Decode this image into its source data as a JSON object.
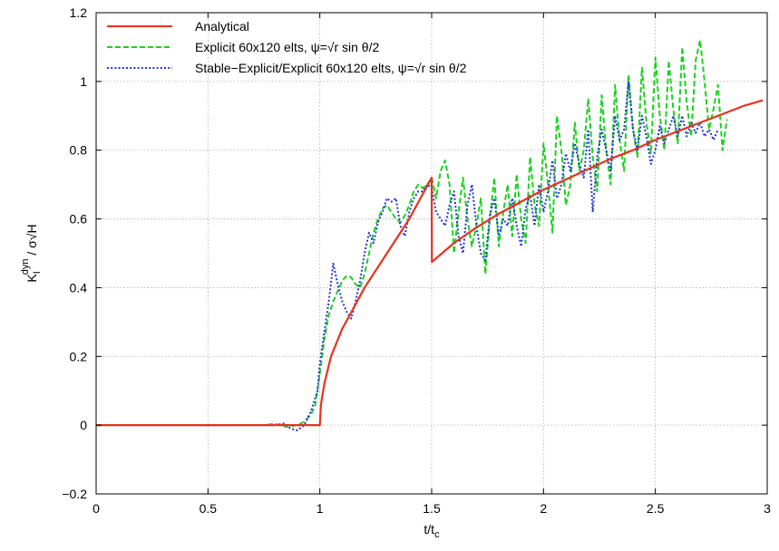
{
  "chart_data": {
    "type": "line",
    "title": "",
    "xlabel": "t/t",
    "xlabel_sub": "c",
    "ylabel_main": "K",
    "ylabel_sub": "I",
    "ylabel_sup": "dyn",
    "ylabel_tail": " / σ√H",
    "xlim": [
      0,
      3
    ],
    "ylim": [
      -0.2,
      1.2
    ],
    "xticks": [
      0,
      0.5,
      1,
      1.5,
      2,
      2.5,
      3
    ],
    "xtick_labels": [
      "0",
      "0.5",
      "1",
      "1.5",
      "2",
      "2.5",
      "3"
    ],
    "yticks": [
      -0.2,
      0,
      0.2,
      0.4,
      0.6,
      0.8,
      1,
      1.2
    ],
    "ytick_labels": [
      "−0.2",
      "0",
      "0.2",
      "0.4",
      "0.6",
      "0.8",
      "1",
      "1.2"
    ],
    "grid": true,
    "legend_position": "top-left",
    "series": [
      {
        "name": "Analytical",
        "color": "#e8321e",
        "style": "solid",
        "points": [
          [
            0,
            0
          ],
          [
            0.999,
            0
          ],
          [
            1.0,
            0
          ],
          [
            1.005,
            0.06
          ],
          [
            1.02,
            0.12
          ],
          [
            1.05,
            0.2
          ],
          [
            1.1,
            0.28
          ],
          [
            1.2,
            0.4
          ],
          [
            1.3,
            0.5
          ],
          [
            1.4,
            0.6
          ],
          [
            1.5,
            0.72
          ],
          [
            1.501,
            0.475
          ],
          [
            1.6,
            0.53
          ],
          [
            1.7,
            0.575
          ],
          [
            1.8,
            0.615
          ],
          [
            1.9,
            0.65
          ],
          [
            2.0,
            0.685
          ],
          [
            2.1,
            0.715
          ],
          [
            2.2,
            0.745
          ],
          [
            2.3,
            0.775
          ],
          [
            2.4,
            0.8
          ],
          [
            2.5,
            0.83
          ],
          [
            2.6,
            0.855
          ],
          [
            2.7,
            0.88
          ],
          [
            2.8,
            0.905
          ],
          [
            2.9,
            0.93
          ],
          [
            2.98,
            0.945
          ]
        ]
      },
      {
        "name": "Explicit 60x120 elts, ψ=√r sin θ/2",
        "color": "#19d21e",
        "style": "dashed",
        "points": [
          [
            0,
            0
          ],
          [
            0.75,
            0
          ],
          [
            0.8,
            0.004
          ],
          [
            0.85,
            -0.005
          ],
          [
            0.9,
            0.0
          ],
          [
            0.93,
            0.01
          ],
          [
            0.96,
            0.03
          ],
          [
            0.98,
            0.06
          ],
          [
            1.0,
            0.15
          ],
          [
            1.02,
            0.25
          ],
          [
            1.04,
            0.32
          ],
          [
            1.06,
            0.36
          ],
          [
            1.08,
            0.39
          ],
          [
            1.1,
            0.42
          ],
          [
            1.12,
            0.435
          ],
          [
            1.14,
            0.43
          ],
          [
            1.16,
            0.41
          ],
          [
            1.18,
            0.4
          ],
          [
            1.2,
            0.44
          ],
          [
            1.22,
            0.5
          ],
          [
            1.24,
            0.56
          ],
          [
            1.26,
            0.6
          ],
          [
            1.28,
            0.63
          ],
          [
            1.3,
            0.64
          ],
          [
            1.32,
            0.62
          ],
          [
            1.34,
            0.6
          ],
          [
            1.36,
            0.59
          ],
          [
            1.38,
            0.61
          ],
          [
            1.4,
            0.64
          ],
          [
            1.42,
            0.68
          ],
          [
            1.44,
            0.7
          ],
          [
            1.46,
            0.69
          ],
          [
            1.48,
            0.7
          ],
          [
            1.5,
            0.72
          ],
          [
            1.52,
            0.66
          ],
          [
            1.54,
            0.74
          ],
          [
            1.56,
            0.77
          ],
          [
            1.58,
            0.7
          ],
          [
            1.6,
            0.5
          ],
          [
            1.62,
            0.62
          ],
          [
            1.64,
            0.72
          ],
          [
            1.66,
            0.6
          ],
          [
            1.68,
            0.52
          ],
          [
            1.7,
            0.58
          ],
          [
            1.72,
            0.66
          ],
          [
            1.74,
            0.44
          ],
          [
            1.76,
            0.6
          ],
          [
            1.78,
            0.72
          ],
          [
            1.8,
            0.52
          ],
          [
            1.82,
            0.62
          ],
          [
            1.84,
            0.7
          ],
          [
            1.86,
            0.55
          ],
          [
            1.88,
            0.73
          ],
          [
            1.9,
            0.6
          ],
          [
            1.92,
            0.53
          ],
          [
            1.94,
            0.78
          ],
          [
            1.96,
            0.64
          ],
          [
            1.98,
            0.58
          ],
          [
            2.0,
            0.82
          ],
          [
            2.02,
            0.7
          ],
          [
            2.04,
            0.56
          ],
          [
            2.06,
            0.9
          ],
          [
            2.08,
            0.8
          ],
          [
            2.1,
            0.64
          ],
          [
            2.12,
            0.7
          ],
          [
            2.14,
            0.88
          ],
          [
            2.16,
            0.74
          ],
          [
            2.18,
            0.8
          ],
          [
            2.2,
            0.95
          ],
          [
            2.22,
            0.78
          ],
          [
            2.24,
            0.68
          ],
          [
            2.26,
            0.96
          ],
          [
            2.28,
            0.8
          ],
          [
            2.3,
            0.7
          ],
          [
            2.32,
            0.99
          ],
          [
            2.34,
            0.83
          ],
          [
            2.36,
            0.74
          ],
          [
            2.38,
            1.02
          ],
          [
            2.4,
            0.86
          ],
          [
            2.42,
            0.78
          ],
          [
            2.44,
            1.04
          ],
          [
            2.46,
            0.88
          ],
          [
            2.48,
            0.79
          ],
          [
            2.5,
            1.07
          ],
          [
            2.52,
            0.9
          ],
          [
            2.54,
            0.8
          ],
          [
            2.56,
            1.06
          ],
          [
            2.58,
            0.92
          ],
          [
            2.6,
            0.82
          ],
          [
            2.62,
            1.1
          ],
          [
            2.64,
            0.94
          ],
          [
            2.66,
            0.84
          ],
          [
            2.68,
            1.06
          ],
          [
            2.7,
            1.12
          ],
          [
            2.72,
            1.0
          ],
          [
            2.74,
            0.86
          ],
          [
            2.76,
            0.92
          ],
          [
            2.78,
            0.99
          ],
          [
            2.8,
            0.8
          ],
          [
            2.82,
            0.89
          ]
        ]
      },
      {
        "name": "Stable−Explicit/Explicit 60x120 elts, ψ=√r sin θ/2",
        "color": "#2233dd",
        "style": "dotted",
        "points": [
          [
            0,
            0
          ],
          [
            0.8,
            0
          ],
          [
            0.84,
            0.005
          ],
          [
            0.87,
            -0.01
          ],
          [
            0.9,
            -0.015
          ],
          [
            0.93,
            0.0
          ],
          [
            0.96,
            0.04
          ],
          [
            0.99,
            0.1
          ],
          [
            1.0,
            0.18
          ],
          [
            1.02,
            0.27
          ],
          [
            1.04,
            0.36
          ],
          [
            1.06,
            0.47
          ],
          [
            1.08,
            0.41
          ],
          [
            1.1,
            0.36
          ],
          [
            1.12,
            0.33
          ],
          [
            1.14,
            0.31
          ],
          [
            1.16,
            0.36
          ],
          [
            1.18,
            0.42
          ],
          [
            1.2,
            0.5
          ],
          [
            1.22,
            0.56
          ],
          [
            1.24,
            0.53
          ],
          [
            1.26,
            0.59
          ],
          [
            1.28,
            0.62
          ],
          [
            1.3,
            0.66
          ],
          [
            1.32,
            0.65
          ],
          [
            1.34,
            0.66
          ],
          [
            1.36,
            0.58
          ],
          [
            1.38,
            0.55
          ],
          [
            1.4,
            0.62
          ],
          [
            1.42,
            0.66
          ],
          [
            1.44,
            0.68
          ],
          [
            1.46,
            0.68
          ],
          [
            1.48,
            0.7
          ],
          [
            1.5,
            0.69
          ],
          [
            1.52,
            0.62
          ],
          [
            1.54,
            0.6
          ],
          [
            1.56,
            0.58
          ],
          [
            1.58,
            0.64
          ],
          [
            1.6,
            0.68
          ],
          [
            1.62,
            0.55
          ],
          [
            1.64,
            0.5
          ],
          [
            1.66,
            0.64
          ],
          [
            1.68,
            0.7
          ],
          [
            1.7,
            0.58
          ],
          [
            1.72,
            0.5
          ],
          [
            1.74,
            0.48
          ],
          [
            1.76,
            0.61
          ],
          [
            1.78,
            0.66
          ],
          [
            1.8,
            0.55
          ],
          [
            1.82,
            0.6
          ],
          [
            1.84,
            0.58
          ],
          [
            1.86,
            0.66
          ],
          [
            1.88,
            0.58
          ],
          [
            1.9,
            0.52
          ],
          [
            1.92,
            0.63
          ],
          [
            1.94,
            0.67
          ],
          [
            1.96,
            0.58
          ],
          [
            1.98,
            0.7
          ],
          [
            2.0,
            0.62
          ],
          [
            2.02,
            0.68
          ],
          [
            2.04,
            0.77
          ],
          [
            2.06,
            0.66
          ],
          [
            2.08,
            0.7
          ],
          [
            2.1,
            0.79
          ],
          [
            2.12,
            0.74
          ],
          [
            2.14,
            0.82
          ],
          [
            2.16,
            0.76
          ],
          [
            2.18,
            0.72
          ],
          [
            2.2,
            0.86
          ],
          [
            2.22,
            0.62
          ],
          [
            2.24,
            0.78
          ],
          [
            2.26,
            0.86
          ],
          [
            2.28,
            0.8
          ],
          [
            2.3,
            0.74
          ],
          [
            2.32,
            0.9
          ],
          [
            2.34,
            0.83
          ],
          [
            2.36,
            0.86
          ],
          [
            2.38,
            1.0
          ],
          [
            2.4,
            0.86
          ],
          [
            2.42,
            0.8
          ],
          [
            2.44,
            0.9
          ],
          [
            2.46,
            0.84
          ],
          [
            2.48,
            0.76
          ],
          [
            2.5,
            0.8
          ],
          [
            2.52,
            0.87
          ],
          [
            2.54,
            0.82
          ],
          [
            2.56,
            0.86
          ],
          [
            2.58,
            0.9
          ],
          [
            2.6,
            0.84
          ],
          [
            2.62,
            0.9
          ],
          [
            2.64,
            0.84
          ],
          [
            2.66,
            0.88
          ],
          [
            2.68,
            0.85
          ],
          [
            2.7,
            0.88
          ],
          [
            2.72,
            0.84
          ],
          [
            2.74,
            0.86
          ],
          [
            2.76,
            0.83
          ],
          [
            2.78,
            0.86
          ]
        ]
      }
    ]
  }
}
